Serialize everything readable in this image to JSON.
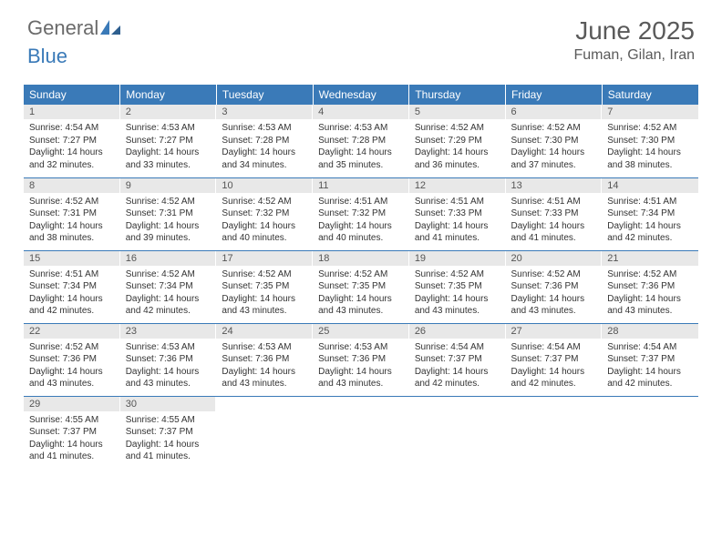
{
  "logo": {
    "general": "General",
    "blue": "Blue"
  },
  "title": {
    "month": "June 2025",
    "location": "Fuman, Gilan, Iran"
  },
  "colors": {
    "header_bg": "#3a7ab8",
    "header_text": "#ffffff",
    "daynum_bg": "#e8e8e8",
    "border": "#3a7ab8",
    "text": "#333333",
    "title_text": "#5a5a5a"
  },
  "weekdays": [
    "Sunday",
    "Monday",
    "Tuesday",
    "Wednesday",
    "Thursday",
    "Friday",
    "Saturday"
  ],
  "days": [
    {
      "n": "1",
      "sr": "4:54 AM",
      "ss": "7:27 PM",
      "dl": "14 hours and 32 minutes."
    },
    {
      "n": "2",
      "sr": "4:53 AM",
      "ss": "7:27 PM",
      "dl": "14 hours and 33 minutes."
    },
    {
      "n": "3",
      "sr": "4:53 AM",
      "ss": "7:28 PM",
      "dl": "14 hours and 34 minutes."
    },
    {
      "n": "4",
      "sr": "4:53 AM",
      "ss": "7:28 PM",
      "dl": "14 hours and 35 minutes."
    },
    {
      "n": "5",
      "sr": "4:52 AM",
      "ss": "7:29 PM",
      "dl": "14 hours and 36 minutes."
    },
    {
      "n": "6",
      "sr": "4:52 AM",
      "ss": "7:30 PM",
      "dl": "14 hours and 37 minutes."
    },
    {
      "n": "7",
      "sr": "4:52 AM",
      "ss": "7:30 PM",
      "dl": "14 hours and 38 minutes."
    },
    {
      "n": "8",
      "sr": "4:52 AM",
      "ss": "7:31 PM",
      "dl": "14 hours and 38 minutes."
    },
    {
      "n": "9",
      "sr": "4:52 AM",
      "ss": "7:31 PM",
      "dl": "14 hours and 39 minutes."
    },
    {
      "n": "10",
      "sr": "4:52 AM",
      "ss": "7:32 PM",
      "dl": "14 hours and 40 minutes."
    },
    {
      "n": "11",
      "sr": "4:51 AM",
      "ss": "7:32 PM",
      "dl": "14 hours and 40 minutes."
    },
    {
      "n": "12",
      "sr": "4:51 AM",
      "ss": "7:33 PM",
      "dl": "14 hours and 41 minutes."
    },
    {
      "n": "13",
      "sr": "4:51 AM",
      "ss": "7:33 PM",
      "dl": "14 hours and 41 minutes."
    },
    {
      "n": "14",
      "sr": "4:51 AM",
      "ss": "7:34 PM",
      "dl": "14 hours and 42 minutes."
    },
    {
      "n": "15",
      "sr": "4:51 AM",
      "ss": "7:34 PM",
      "dl": "14 hours and 42 minutes."
    },
    {
      "n": "16",
      "sr": "4:52 AM",
      "ss": "7:34 PM",
      "dl": "14 hours and 42 minutes."
    },
    {
      "n": "17",
      "sr": "4:52 AM",
      "ss": "7:35 PM",
      "dl": "14 hours and 43 minutes."
    },
    {
      "n": "18",
      "sr": "4:52 AM",
      "ss": "7:35 PM",
      "dl": "14 hours and 43 minutes."
    },
    {
      "n": "19",
      "sr": "4:52 AM",
      "ss": "7:35 PM",
      "dl": "14 hours and 43 minutes."
    },
    {
      "n": "20",
      "sr": "4:52 AM",
      "ss": "7:36 PM",
      "dl": "14 hours and 43 minutes."
    },
    {
      "n": "21",
      "sr": "4:52 AM",
      "ss": "7:36 PM",
      "dl": "14 hours and 43 minutes."
    },
    {
      "n": "22",
      "sr": "4:52 AM",
      "ss": "7:36 PM",
      "dl": "14 hours and 43 minutes."
    },
    {
      "n": "23",
      "sr": "4:53 AM",
      "ss": "7:36 PM",
      "dl": "14 hours and 43 minutes."
    },
    {
      "n": "24",
      "sr": "4:53 AM",
      "ss": "7:36 PM",
      "dl": "14 hours and 43 minutes."
    },
    {
      "n": "25",
      "sr": "4:53 AM",
      "ss": "7:36 PM",
      "dl": "14 hours and 43 minutes."
    },
    {
      "n": "26",
      "sr": "4:54 AM",
      "ss": "7:37 PM",
      "dl": "14 hours and 42 minutes."
    },
    {
      "n": "27",
      "sr": "4:54 AM",
      "ss": "7:37 PM",
      "dl": "14 hours and 42 minutes."
    },
    {
      "n": "28",
      "sr": "4:54 AM",
      "ss": "7:37 PM",
      "dl": "14 hours and 42 minutes."
    },
    {
      "n": "29",
      "sr": "4:55 AM",
      "ss": "7:37 PM",
      "dl": "14 hours and 41 minutes."
    },
    {
      "n": "30",
      "sr": "4:55 AM",
      "ss": "7:37 PM",
      "dl": "14 hours and 41 minutes."
    }
  ],
  "labels": {
    "sunrise": "Sunrise:",
    "sunset": "Sunset:",
    "daylight": "Daylight:"
  }
}
